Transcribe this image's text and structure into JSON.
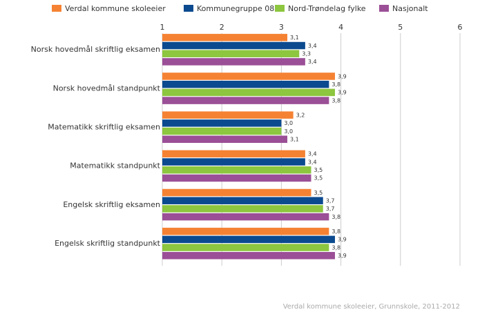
{
  "chart_data": {
    "type": "hbar",
    "categories": [
      "Norsk hovedmål skriftlig eksamen",
      "Norsk hovedmål standpunkt",
      "Matematikk skriftlig eksamen",
      "Matematikk standpunkt",
      "Engelsk skriftlig eksamen",
      "Engelsk skriftlig standpunkt"
    ],
    "series": [
      {
        "name": "Verdal kommune skoleeier",
        "color": "#f58233",
        "values": [
          3.1,
          3.9,
          3.2,
          3.4,
          3.5,
          3.8
        ],
        "value_labels": [
          "3,1",
          "3,9",
          "3,2",
          "3,4",
          "3,5",
          "3,8"
        ]
      },
      {
        "name": "Kommunegruppe 08",
        "color": "#0b4a8f",
        "values": [
          3.4,
          3.8,
          3.0,
          3.4,
          3.7,
          3.9
        ],
        "value_labels": [
          "3,4",
          "3,8",
          "3,0",
          "3,4",
          "3,7",
          "3,9"
        ]
      },
      {
        "name": "Nord-Trøndelag fylke",
        "color": "#8dc63f",
        "values": [
          3.3,
          3.9,
          3.0,
          3.5,
          3.7,
          3.8
        ],
        "value_labels": [
          "3,3",
          "3,9",
          "3,0",
          "3,5",
          "3,7",
          "3,8"
        ]
      },
      {
        "name": "Nasjonalt",
        "color": "#9b4f96",
        "values": [
          3.4,
          3.8,
          3.1,
          3.5,
          3.8,
          3.9
        ],
        "value_labels": [
          "3,4",
          "3,8",
          "3,1",
          "3,5",
          "3,8",
          "3,9"
        ]
      }
    ],
    "xlim": [
      1,
      6
    ],
    "xticks": [
      1,
      2,
      3,
      4,
      5,
      6
    ],
    "grid": true,
    "legend": "top",
    "caption": "Verdal kommune skoleeier, Grunnskole, 2011-2012"
  }
}
